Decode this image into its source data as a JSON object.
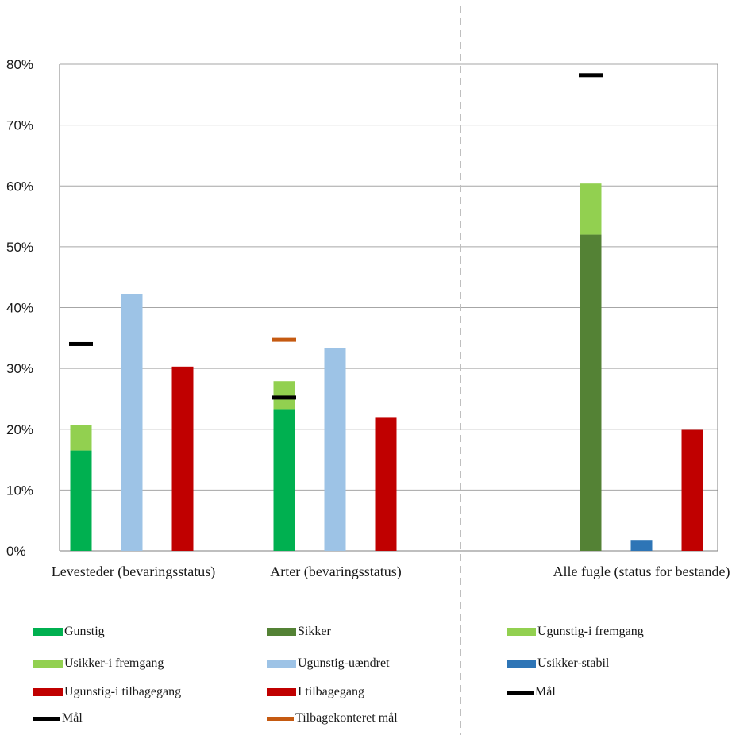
{
  "chart_data": {
    "type": "bar",
    "categories": [
      "Levesteder (bevaringsstatus)",
      "Arter (bevaringsstatus)",
      "Alle fugle (status for bestande)"
    ],
    "y_ticks": [
      "0%",
      "10%",
      "20%",
      "30%",
      "40%",
      "50%",
      "60%",
      "70%",
      "80%"
    ],
    "ylim": [
      0,
      80
    ],
    "grid": true,
    "legend_position": "bottom",
    "title": "",
    "xlabel": "",
    "ylabel": "",
    "colors": {
      "gunstig": "#00b050",
      "fremgang": "#92d050",
      "uaendret": "#9dc3e6",
      "tilbagegang": "#c00000",
      "sikker": "#548235",
      "stabil": "#2e75b6",
      "maal": "#000000",
      "tilbagekonteret": "#c55a11",
      "divider": "#bfbfbf",
      "grid": "#a6a6a6"
    },
    "bars": [
      {
        "category": 0,
        "slot": 0,
        "segments": [
          {
            "series": "Gunstig",
            "value": 16.5,
            "color": "#00b050"
          },
          {
            "series": "Usikker-i fremgang",
            "value": 4.2,
            "color": "#92d050"
          }
        ]
      },
      {
        "category": 0,
        "slot": 1,
        "segments": [
          {
            "series": "Ugunstig-uændret",
            "value": 42.2,
            "color": "#9dc3e6"
          }
        ]
      },
      {
        "category": 0,
        "slot": 2,
        "segments": [
          {
            "series": "Ugunstig-i tilbagegang",
            "value": 30.3,
            "color": "#c00000"
          }
        ]
      },
      {
        "category": 1,
        "slot": 0,
        "segments": [
          {
            "series": "Gunstig",
            "value": 23.3,
            "color": "#00b050"
          },
          {
            "series": "Usikker-i fremgang",
            "value": 4.6,
            "color": "#92d050"
          }
        ]
      },
      {
        "category": 1,
        "slot": 1,
        "segments": [
          {
            "series": "Ugunstig-uændret",
            "value": 33.3,
            "color": "#9dc3e6"
          }
        ]
      },
      {
        "category": 1,
        "slot": 2,
        "segments": [
          {
            "series": "Ugunstig-i tilbagegang",
            "value": 22.0,
            "color": "#c00000"
          }
        ]
      },
      {
        "category": 2,
        "slot": 0,
        "segments": [
          {
            "series": "Sikker",
            "value": 52.0,
            "color": "#548235"
          },
          {
            "series": "Ugunstig-i fremgang",
            "value": 8.4,
            "color": "#92d050"
          }
        ]
      },
      {
        "category": 2,
        "slot": 1,
        "segments": [
          {
            "series": "Usikker-stabil",
            "value": 1.8,
            "color": "#2e75b6"
          }
        ]
      },
      {
        "category": 2,
        "slot": 2,
        "segments": [
          {
            "series": "I tilbagegang",
            "value": 19.9,
            "color": "#c00000"
          }
        ]
      }
    ],
    "markers": [
      {
        "series": "Mål",
        "category": 0,
        "slot": 0,
        "value": 34.0,
        "color": "#000000"
      },
      {
        "series": "Mål",
        "category": 1,
        "slot": 0,
        "value": 25.2,
        "color": "#000000"
      },
      {
        "series": "Tilbagekonteret mål",
        "category": 1,
        "slot": 0,
        "value": 34.7,
        "color": "#c55a11"
      },
      {
        "series": "Mål",
        "category": 2,
        "slot": 0,
        "value": 78.2,
        "color": "#000000"
      }
    ],
    "legend": {
      "columns": [
        [
          {
            "label": "Gunstig",
            "color": "#00b050",
            "kind": "box"
          },
          {
            "label": "Usikker-i fremgang",
            "color": "#92d050",
            "kind": "box"
          },
          {
            "label": "Ugunstig-i tilbagegang",
            "color": "#c00000",
            "kind": "box"
          },
          {
            "label": "Mål",
            "color": "#000000",
            "kind": "line"
          }
        ],
        [
          {
            "label": "Sikker",
            "color": "#548235",
            "kind": "box"
          },
          {
            "label": "Ugunstig-uændret",
            "color": "#9dc3e6",
            "kind": "box"
          },
          {
            "label": "I tilbagegang",
            "color": "#c00000",
            "kind": "box"
          },
          {
            "label": "Tilbagekonteret mål",
            "color": "#c55a11",
            "kind": "line"
          }
        ],
        [
          {
            "label": "Ugunstig-i fremgang",
            "color": "#92d050",
            "kind": "box"
          },
          {
            "label": "Usikker-stabil",
            "color": "#2e75b6",
            "kind": "box"
          },
          {
            "label": "Mål",
            "color": "#000000",
            "kind": "line"
          }
        ]
      ]
    }
  }
}
